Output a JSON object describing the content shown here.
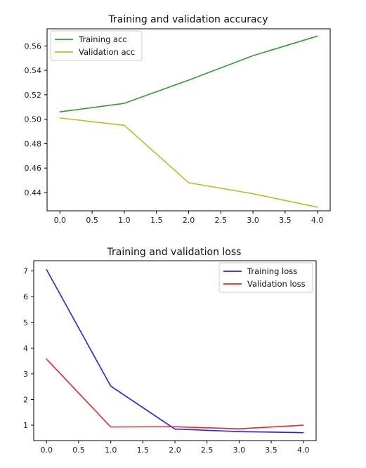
{
  "chart_data": [
    {
      "type": "line",
      "title": "Training and validation accuracy",
      "x": [
        0,
        1,
        2,
        3,
        4
      ],
      "xticks": [
        "0.0",
        "0.5",
        "1.0",
        "1.5",
        "2.0",
        "2.5",
        "3.0",
        "3.5",
        "4.0"
      ],
      "yticks": [
        "0.44",
        "0.46",
        "0.48",
        "0.50",
        "0.52",
        "0.54",
        "0.56"
      ],
      "xlim": [
        -0.2,
        4.2
      ],
      "ylim": [
        0.425,
        0.574
      ],
      "legend_position": "upper-left",
      "series": [
        {
          "name": "Training acc",
          "color": "#2ca02c",
          "values": [
            0.506,
            0.513,
            0.532,
            0.552,
            0.568
          ]
        },
        {
          "name": "Validation acc",
          "color": "#bcbd22",
          "values": [
            0.501,
            0.495,
            0.448,
            0.439,
            0.428
          ]
        }
      ]
    },
    {
      "type": "line",
      "title": "Training and validation loss",
      "x": [
        0,
        1,
        2,
        3,
        4
      ],
      "xticks": [
        "0.0",
        "0.5",
        "1.0",
        "1.5",
        "2.0",
        "2.5",
        "3.0",
        "3.5",
        "4.0"
      ],
      "yticks": [
        "1",
        "2",
        "3",
        "4",
        "5",
        "6",
        "7"
      ],
      "xlim": [
        -0.2,
        4.2
      ],
      "ylim": [
        0.4,
        7.4
      ],
      "legend_position": "upper-right",
      "series": [
        {
          "name": "Training loss",
          "color": "#1f1fff",
          "values": [
            7.05,
            2.52,
            0.85,
            0.75,
            0.71
          ]
        },
        {
          "name": "Validation loss",
          "color": "#ff2020",
          "values": [
            3.57,
            0.93,
            0.94,
            0.86,
            1.0
          ]
        }
      ]
    }
  ]
}
